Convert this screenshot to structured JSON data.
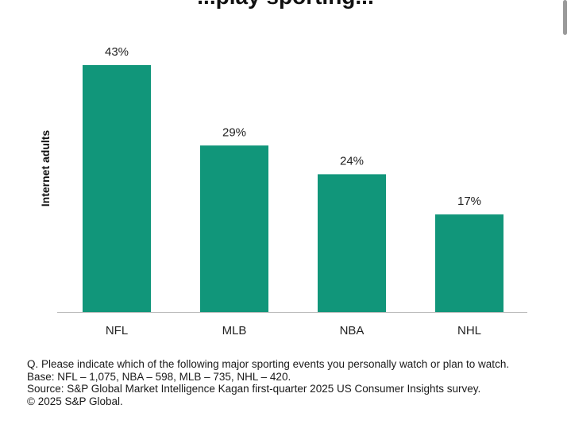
{
  "chart_data": {
    "type": "bar",
    "title": "",
    "title_fragment": "...play sporting...",
    "xlabel": "",
    "ylabel": "Internet adults",
    "categories": [
      "NFL",
      "MLB",
      "NBA",
      "NHL"
    ],
    "values": [
      43,
      29,
      24,
      17
    ],
    "value_labels": [
      "43%",
      "29%",
      "24%",
      "17%"
    ],
    "ylim": [
      0,
      50
    ],
    "grid": false,
    "legend": "none",
    "bar_color": "#11967a"
  },
  "notes": {
    "question": "Q. Please indicate which of the following major sporting events you personally watch or plan to watch.",
    "base": "Base: NFL – 1,075, NBA – 598, MLB – 735, NHL – 420.",
    "source": "Source: S&P Global Market Intelligence Kagan first-quarter 2025 US Consumer Insights survey.",
    "copyright": "© 2025 S&P Global."
  }
}
